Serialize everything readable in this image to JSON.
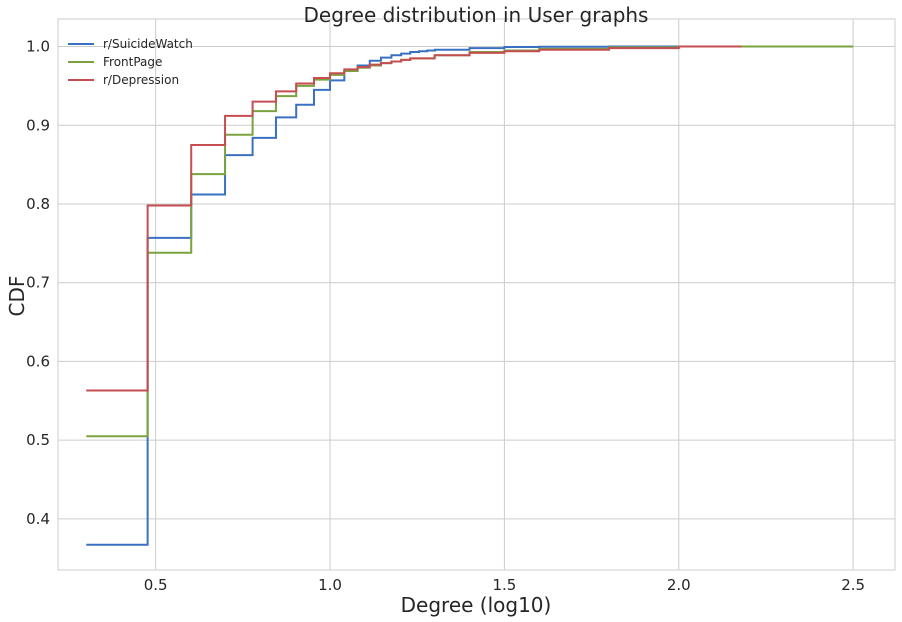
{
  "chart_data": {
    "type": "line",
    "title": "Degree distribution in User graphs",
    "xlabel": "Degree (log10)",
    "ylabel": "CDF",
    "xlim": [
      0.22,
      2.62
    ],
    "ylim": [
      0.335,
      1.035
    ],
    "xticks": [
      0.5,
      1.0,
      1.5,
      2.0,
      2.5
    ],
    "xtick_labels": [
      "0.5",
      "1.0",
      "1.5",
      "2.0",
      "2.5"
    ],
    "yticks": [
      0.4,
      0.5,
      0.6,
      0.7,
      0.8,
      0.9,
      1.0
    ],
    "ytick_labels": [
      "0.4",
      "0.5",
      "0.6",
      "0.7",
      "0.8",
      "0.9",
      "1.0"
    ],
    "grid": true,
    "legend_position": "top-left",
    "series": [
      {
        "name": "r/SuicideWatch",
        "color": "#3a70c1",
        "x": [
          0.301,
          0.477,
          0.602,
          0.699,
          0.778,
          0.845,
          0.903,
          0.954,
          1.0,
          1.041,
          1.079,
          1.114,
          1.146,
          1.176,
          1.204,
          1.23,
          1.255,
          1.279,
          1.301,
          1.4,
          1.5,
          1.6,
          1.8,
          2.0,
          2.18
        ],
        "y": [
          0.367,
          0.757,
          0.812,
          0.862,
          0.884,
          0.91,
          0.926,
          0.945,
          0.957,
          0.969,
          0.976,
          0.982,
          0.986,
          0.989,
          0.991,
          0.993,
          0.994,
          0.995,
          0.996,
          0.998,
          0.9995,
          0.9998,
          1.0,
          1.0,
          1.0
        ]
      },
      {
        "name": "FrontPage",
        "color": "#7aa33f",
        "x": [
          0.301,
          0.477,
          0.602,
          0.699,
          0.778,
          0.845,
          0.903,
          0.954,
          1.0,
          1.041,
          1.079,
          1.114,
          1.146,
          1.176,
          1.204,
          1.23,
          1.3,
          1.4,
          1.5,
          1.6,
          1.8,
          2.0,
          2.2,
          2.5
        ],
        "y": [
          0.505,
          0.738,
          0.838,
          0.888,
          0.918,
          0.937,
          0.95,
          0.958,
          0.964,
          0.969,
          0.973,
          0.976,
          0.979,
          0.981,
          0.983,
          0.985,
          0.989,
          0.993,
          0.995,
          0.997,
          0.999,
          1.0,
          1.0,
          1.0
        ]
      },
      {
        "name": "r/Depression",
        "color": "#c44e52",
        "x": [
          0.301,
          0.477,
          0.602,
          0.699,
          0.778,
          0.845,
          0.903,
          0.954,
          1.0,
          1.041,
          1.079,
          1.114,
          1.146,
          1.176,
          1.204,
          1.23,
          1.3,
          1.4,
          1.5,
          1.6,
          1.8,
          2.0,
          2.18
        ],
        "y": [
          0.563,
          0.798,
          0.875,
          0.912,
          0.93,
          0.943,
          0.953,
          0.96,
          0.966,
          0.971,
          0.974,
          0.977,
          0.979,
          0.981,
          0.983,
          0.985,
          0.989,
          0.992,
          0.994,
          0.996,
          0.998,
          1.0,
          1.0
        ]
      }
    ]
  }
}
